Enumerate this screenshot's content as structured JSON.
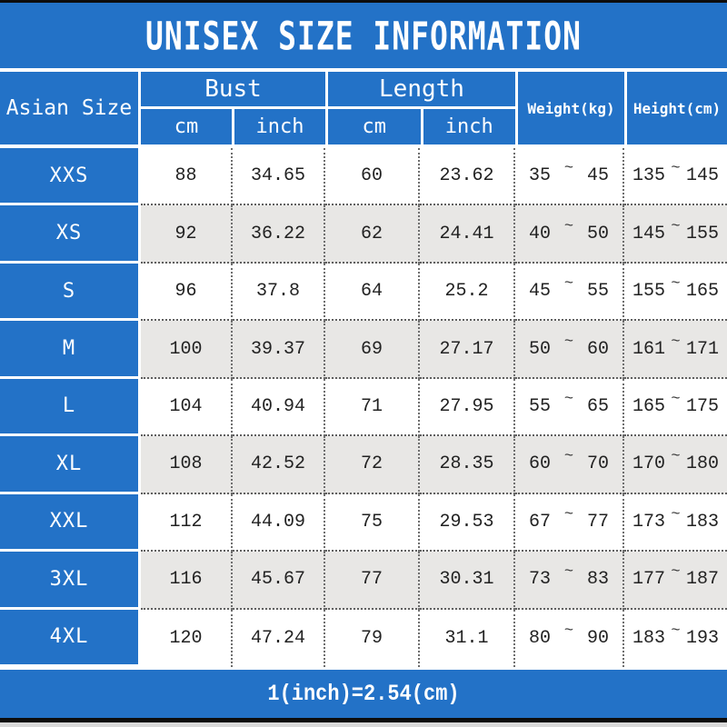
{
  "chart_data": {
    "type": "table",
    "title": "UNISEX SIZE INFORMATION",
    "size_column_header": "Asian Size",
    "groups": [
      {
        "label": "Bust",
        "sub": [
          "cm",
          "inch"
        ]
      },
      {
        "label": "Length",
        "sub": [
          "cm",
          "inch"
        ]
      }
    ],
    "range_headers": [
      "Weight(kg)",
      "Height(cm)"
    ],
    "tilde": "~",
    "rows": [
      {
        "size": "XXS",
        "bust_cm": "88",
        "bust_inch": "34.65",
        "length_cm": "60",
        "length_inch": "23.62",
        "weight_min": "35",
        "weight_max": "45",
        "height_min": "135",
        "height_max": "145"
      },
      {
        "size": "XS",
        "bust_cm": "92",
        "bust_inch": "36.22",
        "length_cm": "62",
        "length_inch": "24.41",
        "weight_min": "40",
        "weight_max": "50",
        "height_min": "145",
        "height_max": "155"
      },
      {
        "size": "S",
        "bust_cm": "96",
        "bust_inch": "37.8",
        "length_cm": "64",
        "length_inch": "25.2",
        "weight_min": "45",
        "weight_max": "55",
        "height_min": "155",
        "height_max": "165"
      },
      {
        "size": "M",
        "bust_cm": "100",
        "bust_inch": "39.37",
        "length_cm": "69",
        "length_inch": "27.17",
        "weight_min": "50",
        "weight_max": "60",
        "height_min": "161",
        "height_max": "171"
      },
      {
        "size": "L",
        "bust_cm": "104",
        "bust_inch": "40.94",
        "length_cm": "71",
        "length_inch": "27.95",
        "weight_min": "55",
        "weight_max": "65",
        "height_min": "165",
        "height_max": "175"
      },
      {
        "size": "XL",
        "bust_cm": "108",
        "bust_inch": "42.52",
        "length_cm": "72",
        "length_inch": "28.35",
        "weight_min": "60",
        "weight_max": "70",
        "height_min": "170",
        "height_max": "180"
      },
      {
        "size": "XXL",
        "bust_cm": "112",
        "bust_inch": "44.09",
        "length_cm": "75",
        "length_inch": "29.53",
        "weight_min": "67",
        "weight_max": "77",
        "height_min": "173",
        "height_max": "183"
      },
      {
        "size": "3XL",
        "bust_cm": "116",
        "bust_inch": "45.67",
        "length_cm": "77",
        "length_inch": "30.31",
        "weight_min": "73",
        "weight_max": "83",
        "height_min": "177",
        "height_max": "187"
      },
      {
        "size": "4XL",
        "bust_cm": "120",
        "bust_inch": "47.24",
        "length_cm": "79",
        "length_inch": "31.1",
        "weight_min": "80",
        "weight_max": "90",
        "height_min": "183",
        "height_max": "193"
      }
    ],
    "note": "1(inch)=2.54(cm)"
  },
  "colors": {
    "primary_blue": "#2372c7",
    "alt_row_gray": "#e8e7e5",
    "edge_black": "#0d0d0d",
    "dotted_border": "#6e6e6e"
  }
}
